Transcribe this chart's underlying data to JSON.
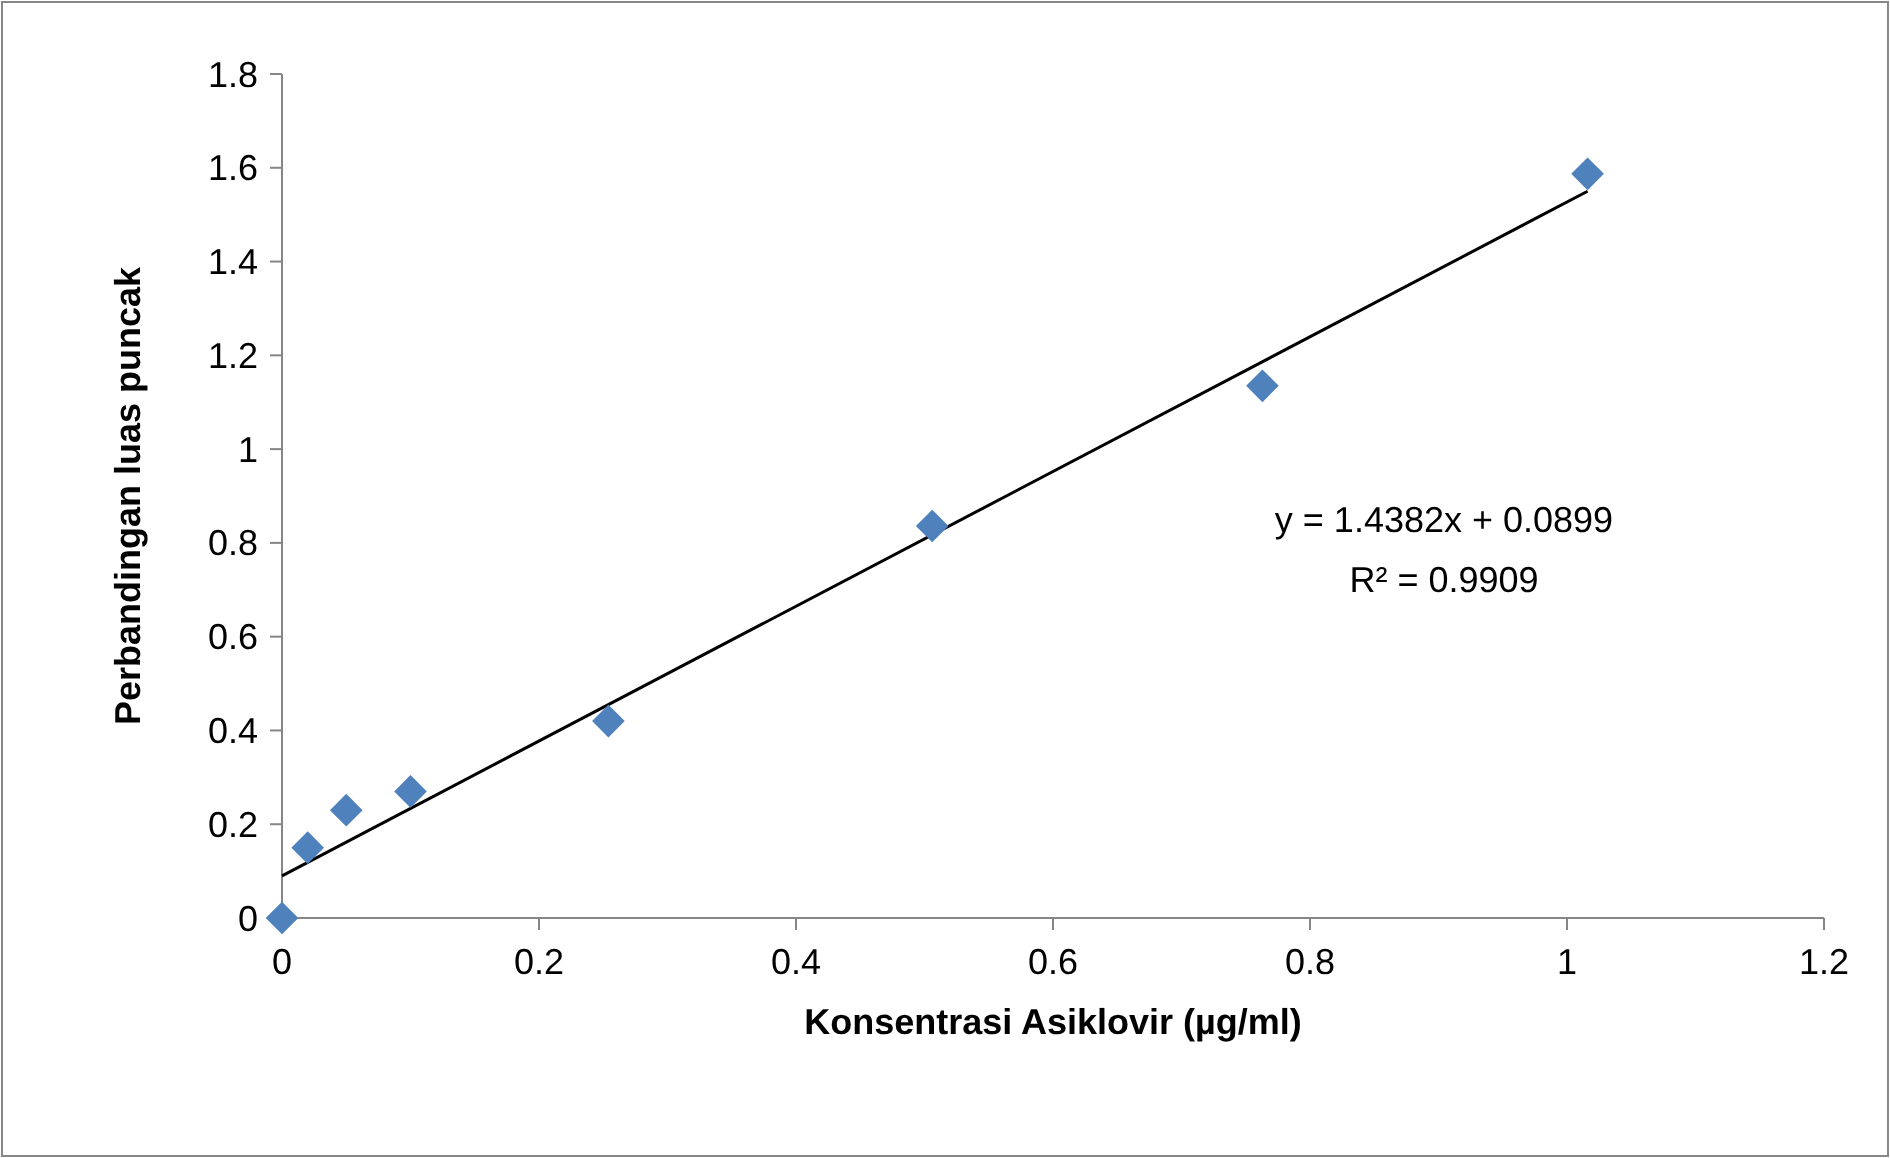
{
  "chart_data": {
    "type": "scatter",
    "xlabel": "Konsentrasi Asiklovir (µg/ml)",
    "ylabel": "Perbandingan luas puncak",
    "xlim": [
      0,
      1.2
    ],
    "xticks": [
      0,
      0.2,
      0.4,
      0.6,
      0.8,
      1,
      1.2
    ],
    "ylim": [
      0,
      1.8
    ],
    "yticks": [
      0,
      0.2,
      0.4,
      0.6,
      0.8,
      1,
      1.2,
      1.4,
      1.6,
      1.8
    ],
    "grid": false,
    "series": [
      {
        "marker": "diamond",
        "color": "#4f81bd",
        "x": [
          0,
          0.02,
          0.05,
          0.1,
          0.254,
          0.506,
          0.763,
          1.016
        ],
        "values": [
          0,
          0.15,
          0.23,
          0.27,
          0.42,
          0.836,
          1.135,
          1.587
        ]
      },
      {
        "type": "line",
        "color": "#000000",
        "x": [
          0,
          1.016
        ],
        "values": [
          0.09,
          1.55
        ]
      }
    ],
    "annotations": [
      "y = 1.4382x + 0.0899",
      "R² = 0.9909"
    ]
  }
}
